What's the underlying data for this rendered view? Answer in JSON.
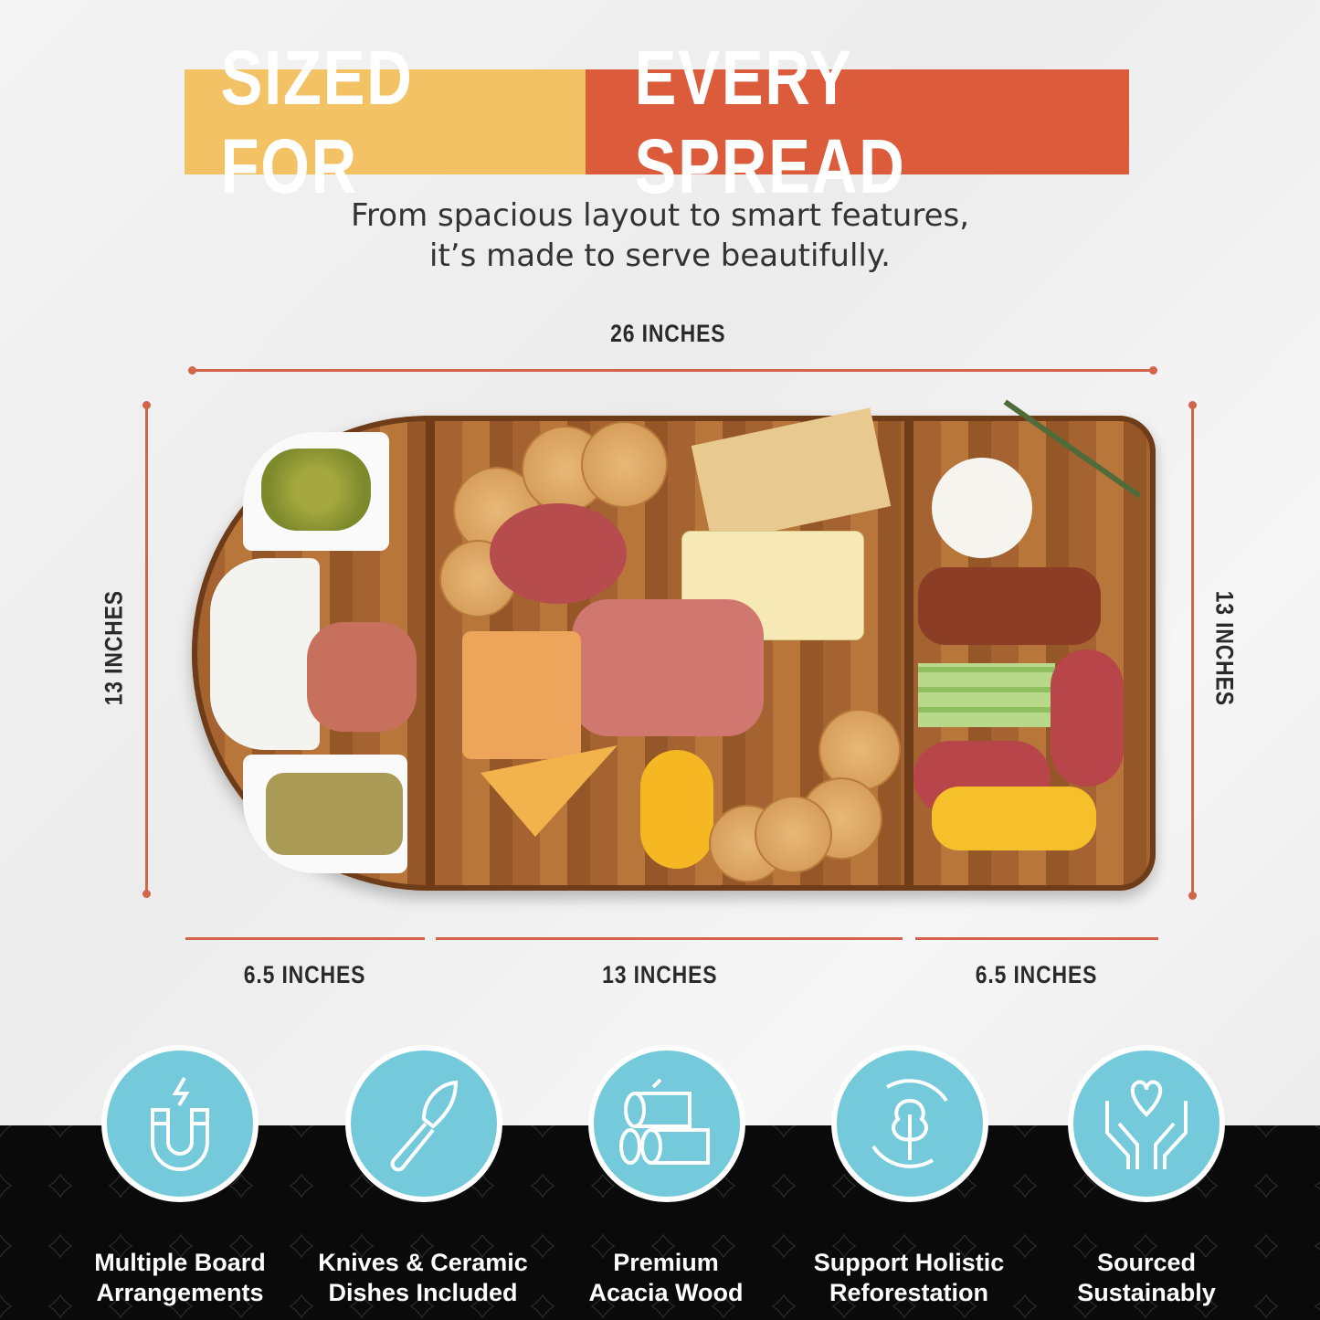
{
  "header": {
    "title_part1": "SIZED FOR",
    "title_part2": "EVERY SPREAD",
    "subtitle_line1": "From spacious layout to smart features,",
    "subtitle_line2": "it’s made to serve beautifully."
  },
  "dimensions": {
    "total_length": "26 INCHES",
    "height_left": "13 INCHES",
    "height_right": "13 INCHES",
    "left_section": "6.5 INCHES",
    "middle_section": "13 INCHES",
    "right_section": "6.5 INCHES"
  },
  "features": [
    {
      "icon": "magnet-icon",
      "line1": "Multiple Board",
      "line2": "Arrangements"
    },
    {
      "icon": "cheese-knife-icon",
      "line1": "Knives & Ceramic",
      "line2": "Dishes Included"
    },
    {
      "icon": "wood-logs-icon",
      "line1": "Premium",
      "line2": "Acacia Wood"
    },
    {
      "icon": "tree-recycle-icon",
      "line1": "Support Holistic",
      "line2": "Reforestation"
    },
    {
      "icon": "hands-heart-icon",
      "line1": "Sourced",
      "line2": "Sustainably"
    }
  ],
  "colors": {
    "title_yellow": "#f2c265",
    "title_red": "#dc5b3a",
    "dimension_line": "#d2644a",
    "badge_blue": "#74c9da",
    "band": "#0a0a0a"
  }
}
